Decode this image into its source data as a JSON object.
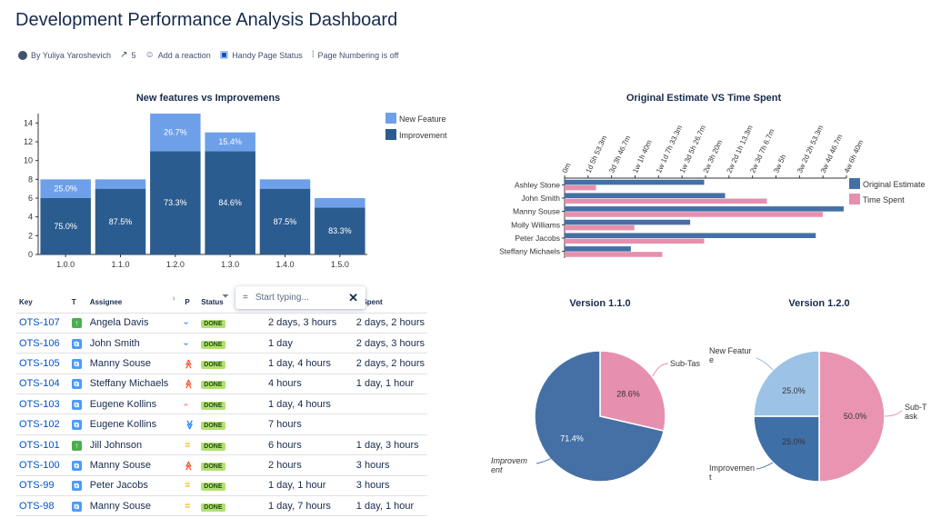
{
  "page": {
    "title": "Development Performance Analysis Dashboard",
    "byline": {
      "author": "By Yuliya Yaroshevich",
      "views": "5",
      "reaction": "Add a reaction",
      "handy_status": "Handy Page Status",
      "numbering": "Page Numbering is off"
    }
  },
  "colors": {
    "dark_blue": "#2b5c8f",
    "light_blue": "#6ea0ea",
    "steel_blue": "#4470a6",
    "pink": "#e78fae",
    "pie_light": "#9cc3e6",
    "pie_blue": "#3f6fa7",
    "pie_pink": "#e995b2"
  },
  "chart_data": [
    {
      "type": "bar",
      "stacked": true,
      "title": "New features vs Improvemens",
      "categories": [
        "1.0.0",
        "1.1.0",
        "1.2.0",
        "1.3.0",
        "1.4.0",
        "1.5.0"
      ],
      "series": [
        {
          "name": "Improvement",
          "values": [
            6,
            7,
            11,
            11,
            7,
            5
          ],
          "labels": [
            "75.0%",
            "87.5%",
            "73.3%",
            "84.6%",
            "87.5%",
            "83.3%"
          ]
        },
        {
          "name": "New Feature",
          "values": [
            2,
            1,
            4,
            2,
            1,
            1
          ],
          "labels": [
            "25.0%",
            "",
            "26.7%",
            "15.4%",
            "",
            ""
          ]
        }
      ],
      "ylim": [
        0,
        15
      ],
      "yticks": [
        "0",
        "2",
        "4",
        "6",
        "8",
        "10",
        "12",
        "14"
      ],
      "legend": "top-right"
    },
    {
      "type": "bar",
      "orientation": "horizontal",
      "title": "Original Estimate VS Time Spent",
      "categories": [
        "Ashley Stone",
        "John Smith",
        "Manny Souse",
        "Molly Williams",
        "Peter Jacobs",
        "Steffany Michaels"
      ],
      "series": [
        {
          "name": "Original Estimate",
          "values": [
            2.0,
            2.3,
            4.0,
            1.8,
            3.6,
            0.95
          ]
        },
        {
          "name": "Time Spent",
          "values": [
            0.45,
            2.9,
            3.7,
            1.0,
            2.0,
            1.4
          ]
        }
      ],
      "xticks": [
        "0m",
        "1d 5h 53.3m",
        "3d 3h 46.7m",
        "1w 1h 40m",
        "1w 1d 7h 33.3m",
        "1w 3d 5h 26.7m",
        "2w 3h 20m",
        "2w 2d 1h 13.3m",
        "2w 3d 7h 6.7m",
        "3w 5h",
        "3w 2d 2h 53.3m",
        "3w 4d 46.7m",
        "4w 6h 40m"
      ],
      "legend": "right"
    },
    {
      "type": "pie",
      "title": "Version 1.1.0",
      "slices": [
        {
          "label": "Sub-Task",
          "value": 28.6,
          "text": "28.6%"
        },
        {
          "label": "Improvement",
          "value": 71.4,
          "text": "71.4%"
        }
      ]
    },
    {
      "type": "pie",
      "title": "Version 1.2.0",
      "slices": [
        {
          "label": "Sub-Task",
          "value": 50.0,
          "text": "50.0%"
        },
        {
          "label": "Improvement",
          "value": 25.0,
          "text": "25.0%"
        },
        {
          "label": "New Feature",
          "value": 25.0,
          "text": "25.0%"
        }
      ]
    }
  ],
  "hbar_labels": {
    "o_est": "Original Estimate",
    "t_spent": "Time Spent"
  },
  "pie1_labels": {
    "sub": "Sub-Task",
    "imp_a": "Improvem",
    "imp_b": "ent"
  },
  "pie2_labels": {
    "nf_a": "New Featur",
    "nf_b": "e",
    "sub_a": "Sub-T",
    "sub_b": "ask",
    "imp_a": "Improvemen",
    "imp_b": "t"
  },
  "table": {
    "headers": {
      "key": "Key",
      "t": "T",
      "assignee": "Assignee",
      "p": "P",
      "status": "Status",
      "spent": "e Spent"
    },
    "filter_placeholder": "Start typing...",
    "rows": [
      {
        "key": "OTS-107",
        "type": "story",
        "assignee": "Angela Davis",
        "prio": "low",
        "status": "DONE",
        "estimate": "2 days, 3 hours",
        "spent": "2 days, 2 hours"
      },
      {
        "key": "OTS-106",
        "type": "task",
        "assignee": "John Smith",
        "prio": "low",
        "status": "DONE",
        "estimate": "1 day",
        "spent": "2 days, 3 hours"
      },
      {
        "key": "OTS-105",
        "type": "task",
        "assignee": "Manny Souse",
        "prio": "highest",
        "status": "DONE",
        "estimate": "1 day, 4 hours",
        "spent": "2 days, 2 hours"
      },
      {
        "key": "OTS-104",
        "type": "task",
        "assignee": "Steffany Michaels",
        "prio": "highest",
        "status": "DONE",
        "estimate": "4 hours",
        "spent": "1 day, 1 hour"
      },
      {
        "key": "OTS-103",
        "type": "task",
        "assignee": "Eugene Kollins",
        "prio": "high",
        "status": "DONE",
        "estimate": "1 day, 4 hours",
        "spent": ""
      },
      {
        "key": "OTS-102",
        "type": "task",
        "assignee": "Eugene Kollins",
        "prio": "lowest",
        "status": "DONE",
        "estimate": "7 hours",
        "spent": ""
      },
      {
        "key": "OTS-101",
        "type": "story",
        "assignee": "Jill Johnson",
        "prio": "medium",
        "status": "DONE",
        "estimate": "6 hours",
        "spent": "1 day, 3 hours"
      },
      {
        "key": "OTS-100",
        "type": "task",
        "assignee": "Manny Souse",
        "prio": "highest",
        "status": "DONE",
        "estimate": "2 hours",
        "spent": "3 hours"
      },
      {
        "key": "OTS-99",
        "type": "task",
        "assignee": "Peter Jacobs",
        "prio": "medium",
        "status": "DONE",
        "estimate": "1 day, 1 hour",
        "spent": "3 hours"
      },
      {
        "key": "OTS-98",
        "type": "task",
        "assignee": "Manny Souse",
        "prio": "medium",
        "status": "DONE",
        "estimate": "1 day, 7 hours",
        "spent": "1 day, 1 hour"
      }
    ]
  }
}
